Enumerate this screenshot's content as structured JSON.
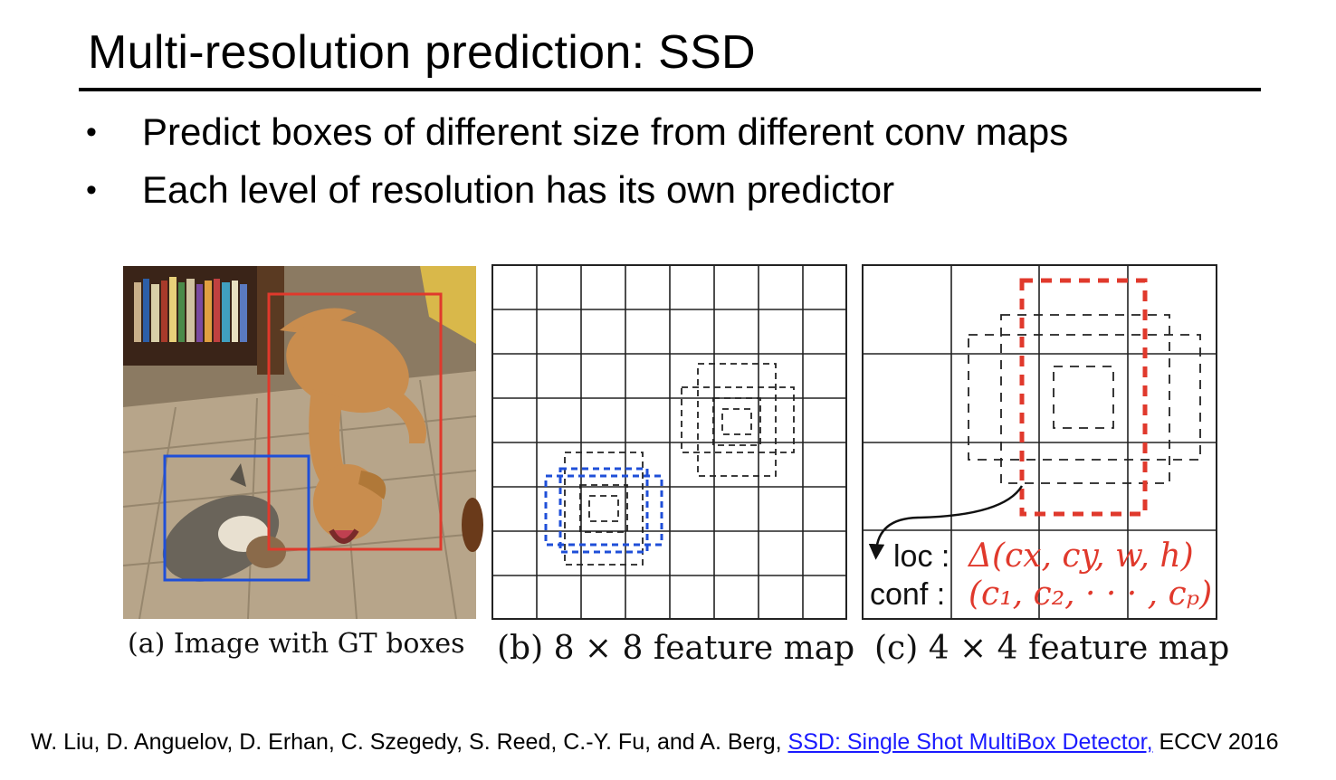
{
  "slide": {
    "title": "Multi-resolution prediction: SSD",
    "bullets": [
      "Predict boxes of different size from different conv maps",
      "Each level of resolution has its own predictor"
    ]
  },
  "figure": {
    "captions": {
      "a": "(a) Image with GT boxes",
      "b": "(b) 8 × 8 feature map",
      "c": "(c) 4 × 4 feature map"
    },
    "grid_b": {
      "rows": 8,
      "cols": 8
    },
    "grid_c": {
      "rows": 4,
      "cols": 4
    },
    "loc_label": "loc :",
    "loc_expr": "Δ(cx, cy, w, h)",
    "conf_label": "conf :",
    "conf_expr": "(c₁, c₂, · · · , cₚ)",
    "colors": {
      "gt_cat": "#1f4fd8",
      "gt_dog": "#e0392c",
      "default_box": "#222222",
      "match_blue": "#1f4fd8",
      "match_red": "#e0392c"
    }
  },
  "citation": {
    "authors": "W. Liu, D. Anguelov, D. Erhan, C. Szegedy, S. Reed, C.-Y. Fu, and A. Berg,",
    "link_text": "SSD: Single Shot MultiBox Detector,",
    "venue": "ECCV 2016"
  }
}
